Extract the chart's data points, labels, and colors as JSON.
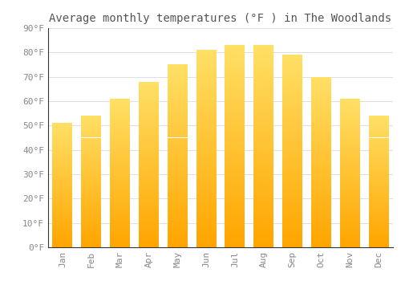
{
  "title": "Average monthly temperatures (°F ) in The Woodlands",
  "months": [
    "Jan",
    "Feb",
    "Mar",
    "Apr",
    "May",
    "Jun",
    "Jul",
    "Aug",
    "Sep",
    "Oct",
    "Nov",
    "Dec"
  ],
  "values": [
    51,
    54,
    61,
    68,
    75,
    81,
    83,
    83,
    79,
    70,
    61,
    54
  ],
  "bar_color_bottom": "#FFA500",
  "bar_color_top": "#FFE066",
  "ylim": [
    0,
    90
  ],
  "yticks": [
    0,
    10,
    20,
    30,
    40,
    50,
    60,
    70,
    80,
    90
  ],
  "background_color": "#FFFFFF",
  "grid_color": "#E0E0E0",
  "title_fontsize": 10,
  "tick_fontsize": 8,
  "font_family": "monospace",
  "title_color": "#555555",
  "tick_color": "#888888",
  "bar_width": 0.7
}
